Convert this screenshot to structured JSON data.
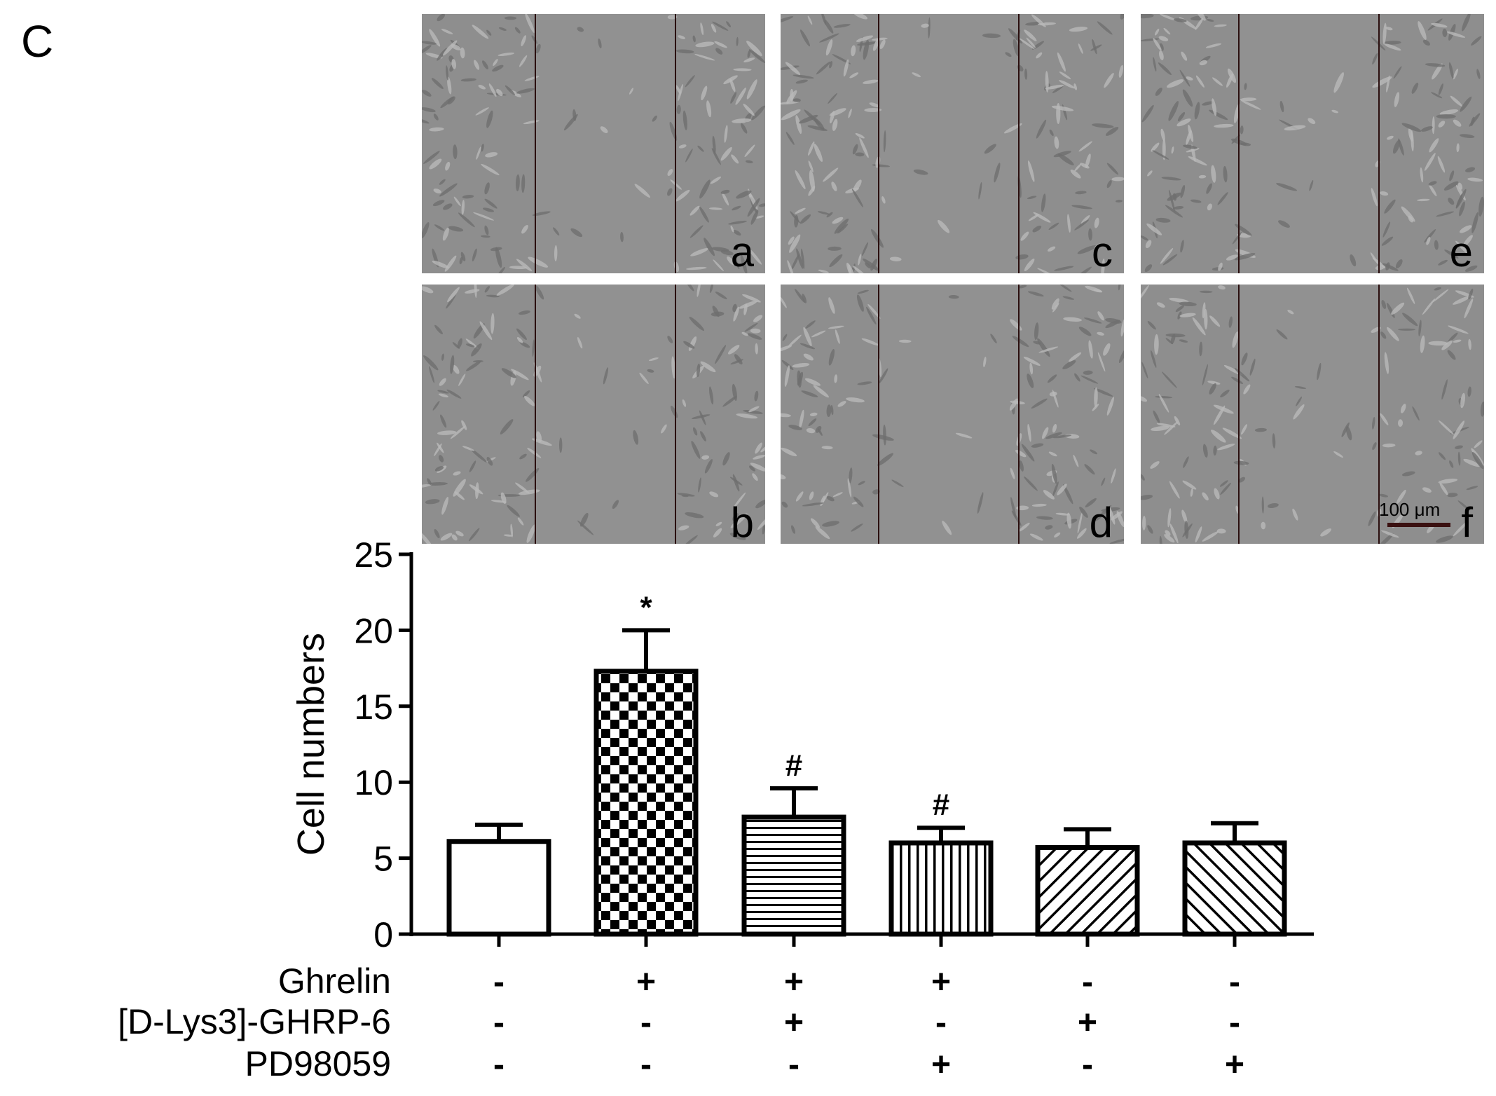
{
  "figure": {
    "panel_label": "C",
    "images": [
      {
        "letter": "a"
      },
      {
        "letter": "c"
      },
      {
        "letter": "e"
      },
      {
        "letter": "b"
      },
      {
        "letter": "d"
      },
      {
        "letter": "f"
      }
    ],
    "scale_bar_label": "100 μm"
  },
  "chart_data": {
    "type": "bar",
    "ylabel": "Cell numbers",
    "ylim": [
      0,
      25
    ],
    "yticks": [
      0,
      5,
      10,
      15,
      20,
      25
    ],
    "groups": 6,
    "values": [
      6.1,
      17.3,
      7.7,
      6.0,
      5.7,
      6.0
    ],
    "errors": [
      1.1,
      2.7,
      1.9,
      1.0,
      1.2,
      1.3
    ],
    "patterns": [
      "none",
      "checker",
      "horizontal",
      "vertical",
      "diagonal-up",
      "diagonal-down"
    ],
    "annotations": [
      "",
      "*",
      "#",
      "#",
      "",
      ""
    ],
    "treatments": [
      {
        "name": "Ghrelin",
        "signs": [
          "-",
          "+",
          "+",
          "+",
          "-",
          "-"
        ]
      },
      {
        "name": "[D-Lys3]-GHRP-6",
        "signs": [
          "-",
          "-",
          "+",
          "-",
          "+",
          "-"
        ]
      },
      {
        "name": "PD98059",
        "signs": [
          "-",
          "-",
          "-",
          "+",
          "-",
          "+"
        ]
      }
    ]
  }
}
